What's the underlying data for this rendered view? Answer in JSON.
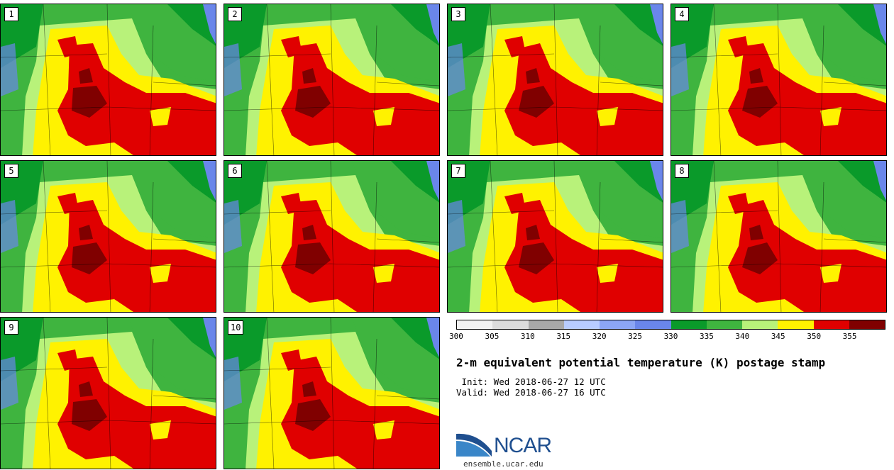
{
  "stamps": [
    {
      "label": "1"
    },
    {
      "label": "2"
    },
    {
      "label": "3"
    },
    {
      "label": "4"
    },
    {
      "label": "5"
    },
    {
      "label": "6"
    },
    {
      "label": "7"
    },
    {
      "label": "8"
    },
    {
      "label": "9"
    },
    {
      "label": "10"
    }
  ],
  "colorbar": {
    "ticks": [
      "300",
      "305",
      "310",
      "315",
      "320",
      "325",
      "330",
      "335",
      "340",
      "345",
      "350",
      "355"
    ],
    "colors": [
      "#f2f2f2",
      "#dcdcdc",
      "#a8a8a8",
      "#b8ccff",
      "#8ca6f5",
      "#6a86ea",
      "#0a9a2a",
      "#3fb43f",
      "#b8f27a",
      "#fff200",
      "#e00000",
      "#800000"
    ]
  },
  "map_colors": {
    "green_dark": "#0a9a2a",
    "green": "#3fb43f",
    "light_green": "#b8f27a",
    "yellow": "#fff200",
    "red": "#e00000",
    "dark_red": "#800000",
    "blue": "#6a86ea"
  },
  "title": "2-m equivalent potential temperature (K) postage stamp",
  "init_line": " Init: Wed 2018-06-27 12 UTC",
  "valid_line": "Valid: Wed 2018-06-27 16 UTC",
  "logo": {
    "text": "NCAR",
    "url": "ensemble.ucar.edu"
  }
}
